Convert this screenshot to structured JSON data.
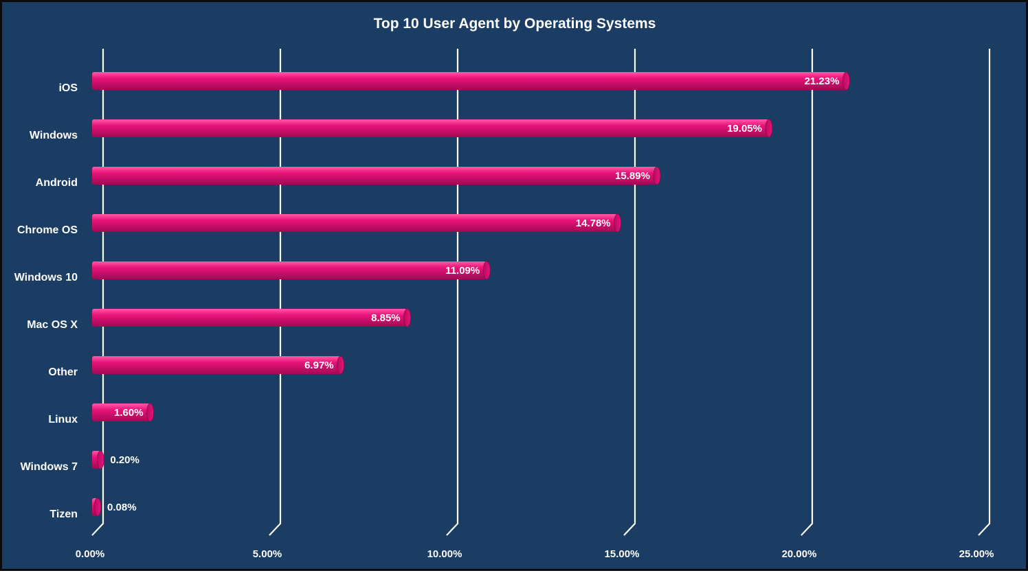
{
  "chart_data": {
    "type": "bar",
    "orientation": "horizontal",
    "title": "Top 10 User Agent by Operating Systems",
    "xlabel": "",
    "ylabel": "",
    "categories": [
      "iOS",
      "Windows",
      "Android",
      "Chrome OS",
      "Windows 10",
      "Mac OS X",
      "Other",
      "Linux",
      "Windows 7",
      "Tizen"
    ],
    "values": [
      21.23,
      19.05,
      15.89,
      14.78,
      11.09,
      8.85,
      6.97,
      1.6,
      0.2,
      0.08
    ],
    "value_labels": [
      "21.23%",
      "19.05%",
      "15.89%",
      "14.78%",
      "11.09%",
      "8.85%",
      "6.97%",
      "1.60%",
      "0.20%",
      "0.08%"
    ],
    "xlim": [
      0,
      25
    ],
    "x_ticks": [
      0,
      5,
      10,
      15,
      20,
      25
    ],
    "x_tick_labels": [
      "0.00%",
      "5.00%",
      "10.00%",
      "15.00%",
      "20.00%",
      "25.00%"
    ],
    "grid": true,
    "legend": "none",
    "colors": {
      "background": "#1b3d63",
      "bar": "#e8137a",
      "bar_highlight": "#ff5aa6",
      "bar_shadow": "#a10a53",
      "gridline": "#ffffff",
      "text": "#ffffff"
    }
  }
}
